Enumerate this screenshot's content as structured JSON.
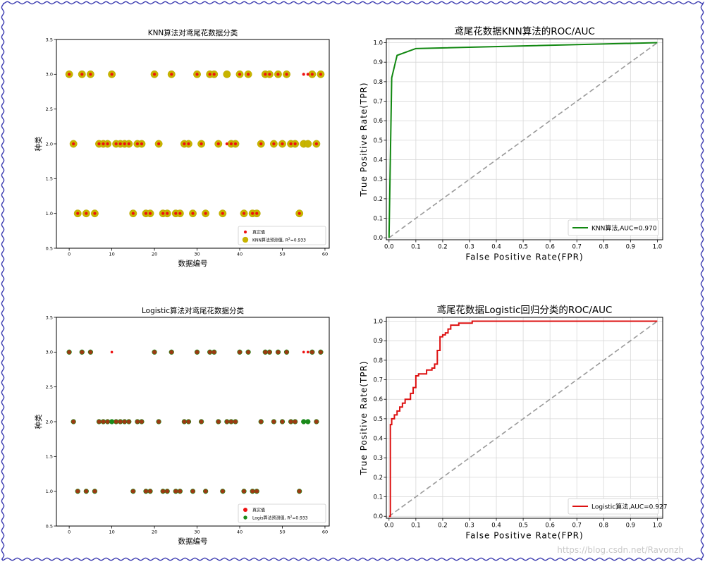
{
  "watermark": "https://blog.csdn.net/Ravonzh",
  "colors": {
    "frame_border": "#3a3ab0",
    "truth_red": "#ee1111",
    "knn_pred": "#c8b400",
    "knn_pred_edge": "#b8a800",
    "logistic_pred": "#1a8a1a",
    "logistic_point": "#9b3a12",
    "knn_roc": "#118811",
    "logistic_roc": "#dd1111",
    "diagonal": "#9a9a9a",
    "grid": "#d8d8d8"
  },
  "chart_data": [
    {
      "id": "knn-scatter",
      "type": "scatter",
      "title": "KNN算法对鸢尾花数据分类",
      "xlabel": "数据编号",
      "ylabel": "种类",
      "xlim": [
        -3,
        61
      ],
      "ylim": [
        0.5,
        3.5
      ],
      "xticks": [
        "0",
        "10",
        "20",
        "30",
        "40",
        "50",
        "60"
      ],
      "yticks": [
        "0.5",
        "1.0",
        "1.5",
        "2.0",
        "2.5",
        "3.0",
        "3.5"
      ],
      "legend_position": "lower-right",
      "series": [
        {
          "name": "真实值",
          "role": "truth",
          "x": [
            0,
            1,
            2,
            3,
            4,
            5,
            6,
            7,
            8,
            9,
            10,
            11,
            12,
            13,
            14,
            15,
            16,
            17,
            18,
            19,
            20,
            21,
            22,
            23,
            24,
            25,
            26,
            27,
            28,
            29,
            30,
            31,
            32,
            33,
            34,
            35,
            36,
            37,
            38,
            39,
            40,
            41,
            42,
            43,
            44,
            45,
            46,
            47,
            48,
            49,
            50,
            51,
            52,
            53,
            54,
            55,
            56,
            57,
            58,
            59
          ],
          "y": [
            3,
            2,
            1,
            3,
            1,
            3,
            1,
            2,
            2,
            2,
            3,
            2,
            2,
            2,
            2,
            1,
            2,
            2,
            1,
            1,
            3,
            2,
            1,
            1,
            3,
            1,
            1,
            2,
            2,
            1,
            3,
            2,
            1,
            3,
            3,
            2,
            1,
            2,
            2,
            2,
            3,
            1,
            3,
            1,
            1,
            2,
            3,
            3,
            2,
            3,
            2,
            3,
            2,
            2,
            1,
            3,
            3,
            3,
            2,
            3
          ]
        },
        {
          "name": "KNN算法预测值, R²=0.933",
          "legend_main": "KNN算法预测值, R",
          "legend_sup": "2",
          "legend_tail": "=0.933",
          "role": "prediction",
          "x": [
            0,
            1,
            2,
            3,
            4,
            5,
            6,
            7,
            8,
            9,
            10,
            11,
            12,
            13,
            14,
            15,
            16,
            17,
            18,
            19,
            20,
            21,
            22,
            23,
            24,
            25,
            26,
            27,
            28,
            29,
            30,
            31,
            32,
            33,
            34,
            35,
            36,
            37,
            38,
            39,
            40,
            41,
            42,
            43,
            44,
            45,
            46,
            47,
            48,
            49,
            50,
            51,
            52,
            53,
            54,
            55,
            56,
            57,
            58,
            59
          ],
          "y": [
            3,
            2,
            1,
            3,
            1,
            3,
            1,
            2,
            2,
            2,
            3,
            2,
            2,
            2,
            2,
            1,
            2,
            2,
            1,
            1,
            3,
            2,
            1,
            1,
            3,
            1,
            1,
            2,
            2,
            1,
            3,
            2,
            1,
            3,
            3,
            2,
            1,
            3,
            2,
            2,
            3,
            1,
            3,
            1,
            1,
            2,
            3,
            3,
            2,
            3,
            2,
            3,
            2,
            2,
            1,
            2,
            2,
            3,
            2,
            3
          ]
        }
      ]
    },
    {
      "id": "knn-roc",
      "type": "line",
      "title": "鸢尾花数据KNN算法的ROC/AUC",
      "xlabel": "False Positive Rate(FPR)",
      "ylabel": "True Positive Rate(TPR)",
      "xlim": [
        -0.01,
        1.02
      ],
      "ylim": [
        -0.01,
        1.02
      ],
      "xticks": [
        "0.0",
        "0.1",
        "0.2",
        "0.3",
        "0.4",
        "0.5",
        "0.6",
        "0.7",
        "0.8",
        "0.9",
        "1.0"
      ],
      "yticks": [
        "0.0",
        "0.1",
        "0.2",
        "0.3",
        "0.4",
        "0.5",
        "0.6",
        "0.7",
        "0.8",
        "0.9",
        "1.0"
      ],
      "grid": true,
      "legend_position": "lower-right",
      "series": [
        {
          "name": "KNN算法,AUC=0.970",
          "x": [
            0,
            0.01,
            0.03,
            0.1,
            1.0
          ],
          "y": [
            0,
            0.82,
            0.935,
            0.97,
            1.0
          ]
        }
      ],
      "diagonal": {
        "x": [
          0,
          1
        ],
        "y": [
          0,
          1
        ]
      }
    },
    {
      "id": "logistic-scatter",
      "type": "scatter",
      "title": "Logistic算法对鸢尾花数据分类",
      "xlabel": "数据编号",
      "ylabel": "种类",
      "xlim": [
        -3,
        61
      ],
      "ylim": [
        0.5,
        3.5
      ],
      "xticks": [
        "0",
        "10",
        "20",
        "30",
        "40",
        "50",
        "60"
      ],
      "yticks": [
        "0.5",
        "1.0",
        "1.5",
        "2.0",
        "2.5",
        "3.0",
        "3.5"
      ],
      "legend_position": "lower-right",
      "series": [
        {
          "name": "真实值",
          "role": "truth",
          "x": [
            0,
            1,
            2,
            3,
            4,
            5,
            6,
            7,
            8,
            9,
            10,
            11,
            12,
            13,
            14,
            15,
            16,
            17,
            18,
            19,
            20,
            21,
            22,
            23,
            24,
            25,
            26,
            27,
            28,
            29,
            30,
            31,
            32,
            33,
            34,
            35,
            36,
            37,
            38,
            39,
            40,
            41,
            42,
            43,
            44,
            45,
            46,
            47,
            48,
            49,
            50,
            51,
            52,
            53,
            54,
            55,
            56,
            57,
            58,
            59
          ],
          "y": [
            3,
            2,
            1,
            3,
            1,
            3,
            1,
            2,
            2,
            2,
            3,
            2,
            2,
            2,
            2,
            1,
            2,
            2,
            1,
            1,
            3,
            2,
            1,
            1,
            3,
            1,
            1,
            2,
            2,
            1,
            3,
            2,
            1,
            3,
            3,
            2,
            1,
            2,
            2,
            2,
            3,
            1,
            3,
            1,
            1,
            2,
            3,
            3,
            2,
            3,
            2,
            3,
            2,
            2,
            1,
            3,
            3,
            3,
            2,
            3
          ]
        },
        {
          "name": "Logis算法预测值, R²=0.933",
          "legend_main": "Logis算法预测值, R",
          "legend_sup": "2",
          "legend_tail": "=0.933",
          "role": "prediction",
          "x": [
            0,
            1,
            2,
            3,
            4,
            5,
            6,
            7,
            8,
            9,
            10,
            11,
            12,
            13,
            14,
            15,
            16,
            17,
            18,
            19,
            20,
            21,
            22,
            23,
            24,
            25,
            26,
            27,
            28,
            29,
            30,
            31,
            32,
            33,
            34,
            35,
            36,
            37,
            38,
            39,
            40,
            41,
            42,
            43,
            44,
            45,
            46,
            47,
            48,
            49,
            50,
            51,
            52,
            53,
            54,
            55,
            56,
            57,
            58,
            59
          ],
          "y": [
            3,
            2,
            1,
            3,
            1,
            3,
            1,
            2,
            2,
            2,
            2,
            2,
            2,
            2,
            2,
            1,
            2,
            2,
            1,
            1,
            3,
            2,
            1,
            1,
            3,
            1,
            1,
            2,
            2,
            1,
            3,
            2,
            1,
            3,
            3,
            2,
            1,
            2,
            2,
            2,
            3,
            1,
            3,
            1,
            1,
            2,
            3,
            3,
            2,
            3,
            2,
            3,
            2,
            2,
            1,
            2,
            2,
            3,
            2,
            3
          ]
        }
      ]
    },
    {
      "id": "logistic-roc",
      "type": "line",
      "title": "鸢尾花数据Logistic回归分类的ROC/AUC",
      "xlabel": "False Positive Rate(FPR)",
      "ylabel": "True Positive Rate(TPR)",
      "xlim": [
        -0.01,
        1.02
      ],
      "ylim": [
        -0.01,
        1.02
      ],
      "xticks": [
        "0.0",
        "0.1",
        "0.2",
        "0.3",
        "0.4",
        "0.5",
        "0.6",
        "0.7",
        "0.8",
        "0.9",
        "1.0"
      ],
      "yticks": [
        "0.0",
        "0.1",
        "0.2",
        "0.3",
        "0.4",
        "0.5",
        "0.6",
        "0.7",
        "0.8",
        "0.9",
        "1.0"
      ],
      "grid": true,
      "legend_position": "lower-right",
      "series": [
        {
          "name": "Logistic算法,AUC=0.927",
          "x": [
            0,
            0.005,
            0.005,
            0.01,
            0.01,
            0.02,
            0.02,
            0.03,
            0.03,
            0.04,
            0.04,
            0.05,
            0.05,
            0.06,
            0.06,
            0.08,
            0.08,
            0.09,
            0.09,
            0.1,
            0.1,
            0.11,
            0.11,
            0.14,
            0.14,
            0.16,
            0.16,
            0.17,
            0.17,
            0.18,
            0.18,
            0.19,
            0.19,
            0.2,
            0.2,
            0.21,
            0.21,
            0.22,
            0.22,
            0.23,
            0.23,
            0.26,
            0.26,
            0.31,
            0.31,
            1.0
          ],
          "y": [
            0,
            0,
            0.47,
            0.47,
            0.5,
            0.5,
            0.52,
            0.52,
            0.54,
            0.54,
            0.56,
            0.56,
            0.58,
            0.58,
            0.6,
            0.6,
            0.63,
            0.63,
            0.66,
            0.66,
            0.72,
            0.72,
            0.73,
            0.73,
            0.75,
            0.75,
            0.76,
            0.76,
            0.78,
            0.78,
            0.85,
            0.85,
            0.92,
            0.92,
            0.93,
            0.93,
            0.94,
            0.94,
            0.96,
            0.96,
            0.98,
            0.98,
            0.99,
            0.99,
            1.0,
            1.0
          ]
        }
      ],
      "diagonal": {
        "x": [
          0,
          1
        ],
        "y": [
          0,
          1
        ]
      }
    }
  ]
}
